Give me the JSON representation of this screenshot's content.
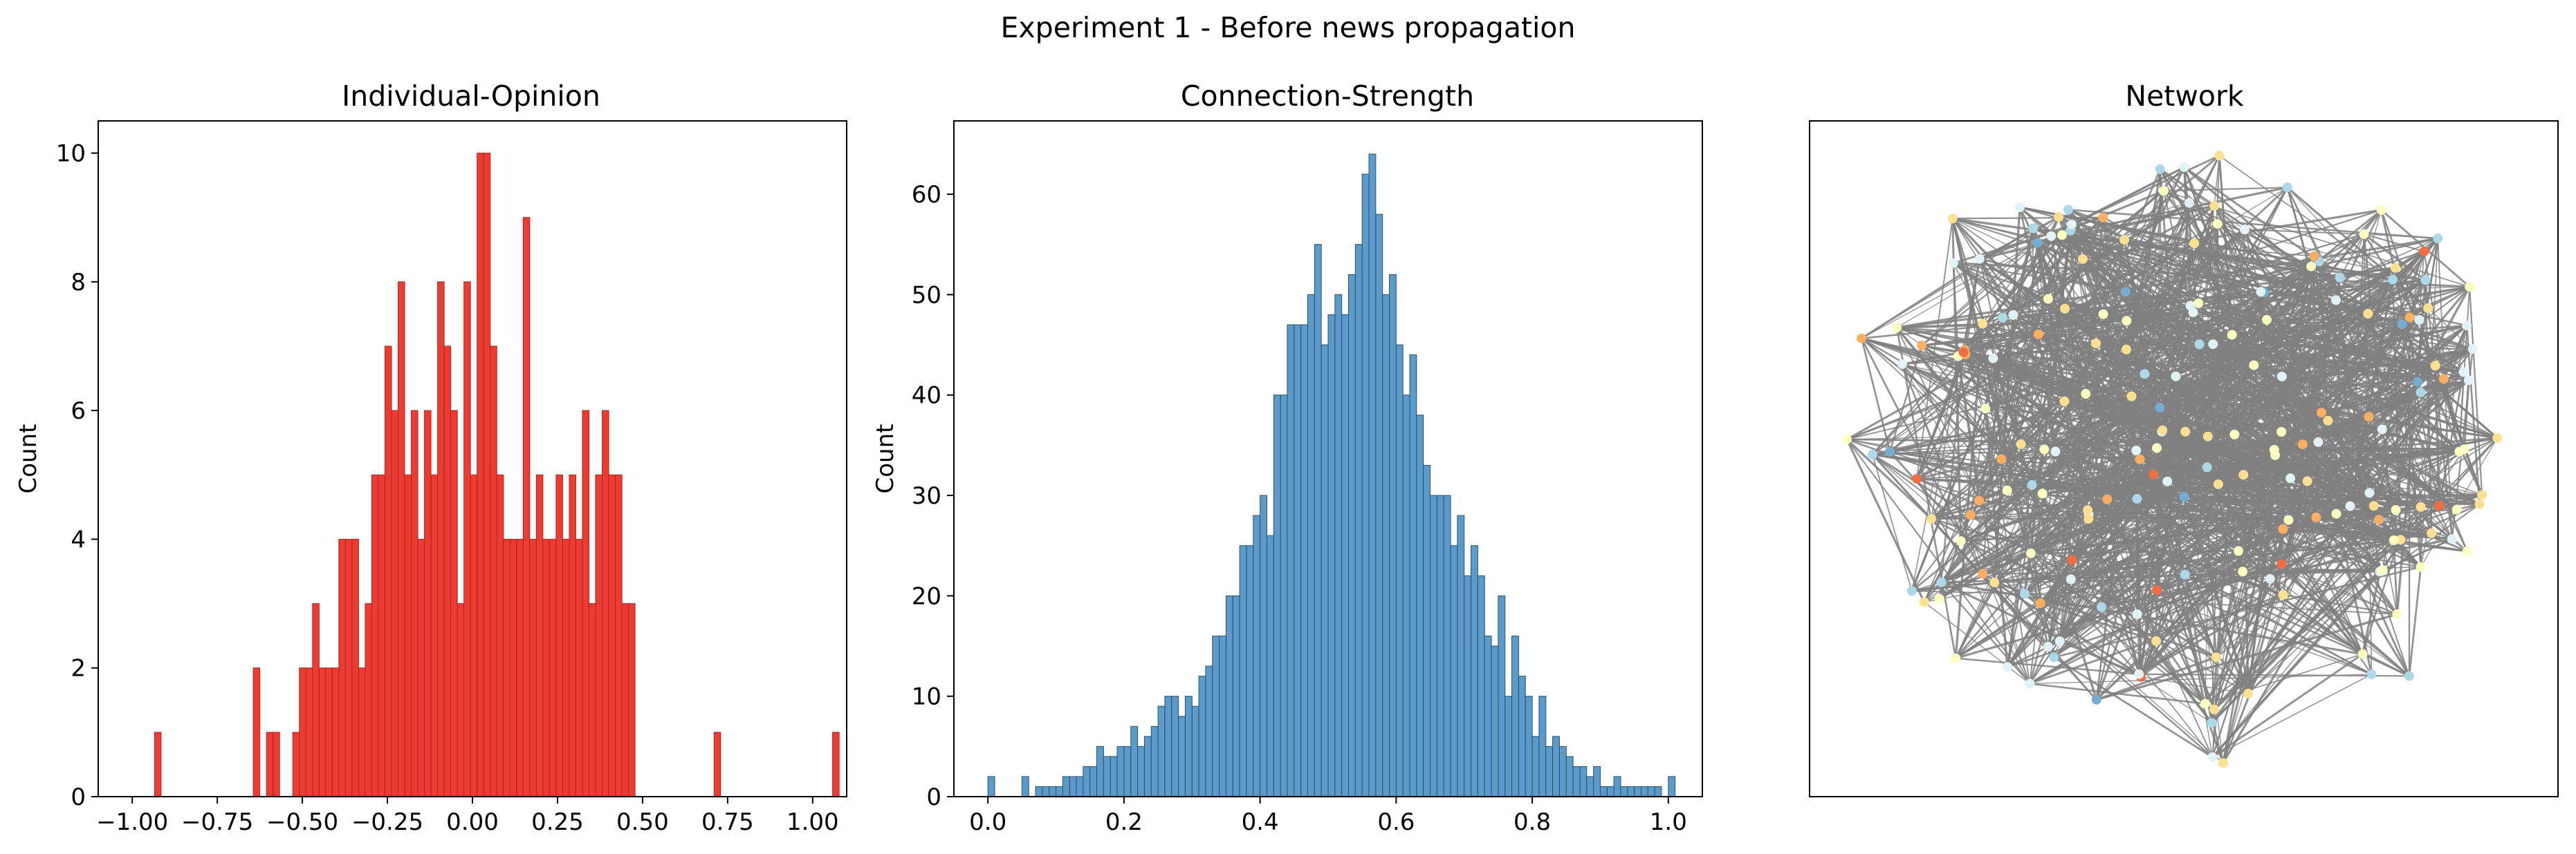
{
  "figure": {
    "suptitle": "Experiment 1 - Before news propagation",
    "colors": {
      "opinion_bar": "#ee3b32",
      "opinion_edge": "#9e2a22",
      "strength_bar": "#5a9bcb",
      "strength_edge": "#2f4f63",
      "network_edge": "#808080"
    }
  },
  "chart_data": [
    {
      "type": "bar",
      "title": "Individual-Opinion",
      "xlabel": "",
      "ylabel": "Count",
      "xlim": [
        -1.1,
        1.1
      ],
      "ylim": [
        0,
        10.5
      ],
      "xticks": [
        -1.0,
        -0.75,
        -0.5,
        -0.25,
        0.0,
        0.25,
        0.5,
        0.75,
        1.0
      ],
      "xtick_labels": [
        "−1.00",
        "−0.75",
        "−0.50",
        "−0.25",
        "0.00",
        "0.25",
        "0.50",
        "0.75",
        "1.00"
      ],
      "yticks": [
        0,
        2,
        4,
        6,
        8,
        10
      ],
      "ytick_labels": [
        "0",
        "2",
        "4",
        "6",
        "8",
        "10"
      ],
      "bin_start": -0.9345,
      "bin_width": 0.01935,
      "values": [
        1,
        0,
        0,
        0,
        0,
        0,
        0,
        0,
        0,
        0,
        0,
        0,
        0,
        0,
        0,
        2,
        0,
        1,
        1,
        0,
        0,
        1,
        2,
        2,
        3,
        2,
        2,
        2,
        4,
        4,
        4,
        2,
        3,
        5,
        5,
        7,
        6,
        8,
        5,
        6,
        4,
        6,
        5,
        8,
        7,
        6,
        3,
        8,
        5,
        10,
        10,
        7,
        5,
        4,
        4,
        4,
        9,
        4,
        5,
        4,
        4,
        5,
        4,
        5,
        4,
        6,
        3,
        5,
        6,
        5,
        5,
        3,
        3,
        0,
        0,
        0,
        0,
        0,
        0,
        0,
        0,
        0,
        0,
        0,
        0,
        1,
        0,
        0,
        0,
        0,
        0,
        0,
        0,
        0,
        0,
        0,
        0,
        0,
        0,
        0,
        0,
        0,
        0,
        1
      ],
      "grid": false
    },
    {
      "type": "bar",
      "title": "Connection-Strength",
      "xlabel": "",
      "ylabel": "Count",
      "xlim": [
        -0.05,
        1.05
      ],
      "ylim": [
        0,
        67.3
      ],
      "xticks": [
        0.0,
        0.2,
        0.4,
        0.6,
        0.8,
        1.0
      ],
      "xtick_labels": [
        "0.0",
        "0.2",
        "0.4",
        "0.6",
        "0.8",
        "1.0"
      ],
      "yticks": [
        0,
        10,
        20,
        30,
        40,
        50,
        60
      ],
      "ytick_labels": [
        "0",
        "10",
        "20",
        "30",
        "40",
        "50",
        "60"
      ],
      "bin_start": 0.0,
      "bin_width": 0.01,
      "values": [
        2,
        0,
        0,
        0,
        0,
        2,
        0,
        1,
        1,
        1,
        1,
        2,
        2,
        2,
        3,
        3,
        5,
        4,
        4,
        5,
        5,
        7,
        5,
        6,
        7,
        9,
        10,
        10,
        8,
        10,
        9,
        12,
        13,
        16,
        16,
        20,
        20,
        25,
        25,
        28,
        30,
        26,
        40,
        40,
        47,
        47,
        47,
        50,
        55,
        45,
        48,
        50,
        48,
        52,
        55,
        62,
        64,
        58,
        50,
        52,
        45,
        40,
        44,
        38,
        33,
        30,
        30,
        30,
        25,
        28,
        22,
        25,
        22,
        16,
        15,
        20,
        10,
        16,
        12,
        10,
        6,
        10,
        5,
        6,
        5,
        4,
        3,
        3,
        2,
        3,
        1,
        1,
        2,
        1,
        1,
        1,
        1,
        1,
        1,
        0,
        2
      ],
      "grid": false
    },
    {
      "type": "network",
      "title": "Network",
      "xlabel": "",
      "ylabel": "",
      "axes_visible": false,
      "node_colormap": [
        "#a50026",
        "#d73027",
        "#f46d43",
        "#fdae61",
        "#fee090",
        "#ffffbf",
        "#e0f3f8",
        "#abd9e9",
        "#74add1",
        "#4575b4",
        "#313695"
      ]
    }
  ]
}
